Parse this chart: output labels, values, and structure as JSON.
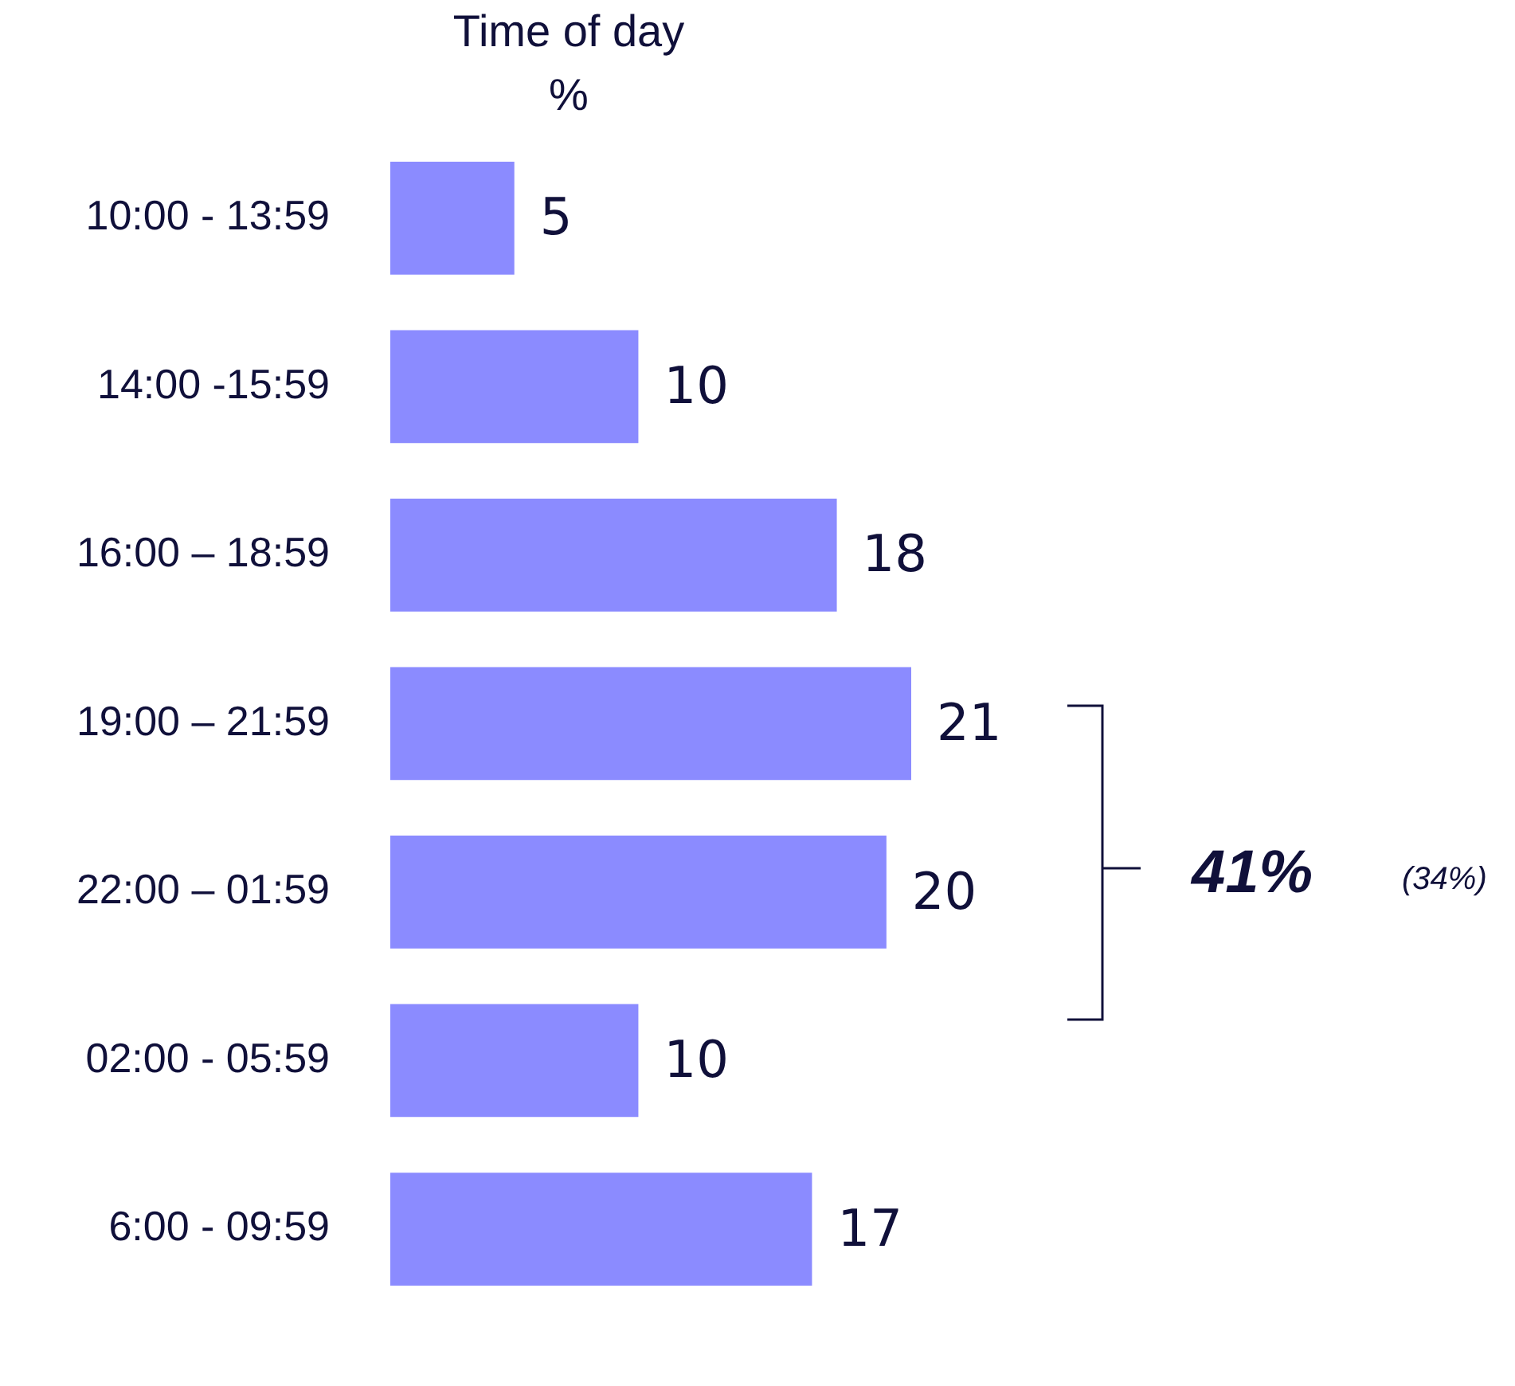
{
  "chart_data": {
    "type": "bar",
    "orientation": "horizontal",
    "title": "Time of day",
    "subtitle": "%",
    "categories": [
      "10:00 - 13:59",
      "14:00 -15:59",
      "16:00 – 18:59",
      "19:00 – 21:59",
      "22:00 – 01:59",
      "02:00 - 05:59",
      "6:00 - 09:59"
    ],
    "values": [
      5,
      10,
      18,
      21,
      20,
      10,
      17
    ],
    "color": "#8b8bff",
    "data_labels": true,
    "annotations": [
      "41%",
      "(34%)"
    ]
  }
}
